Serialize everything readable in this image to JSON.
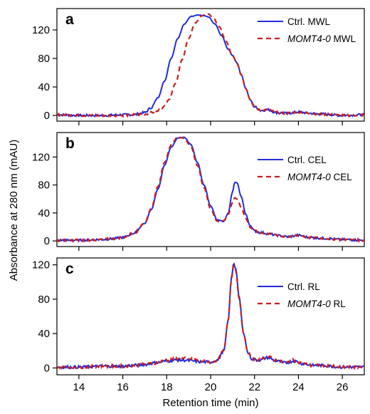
{
  "figure": {
    "ylabel": "Absorbance at 280 nm (mAU)",
    "xlabel": "Retention time (min)",
    "x_ticks": [
      "14",
      "16",
      "18",
      "20",
      "22",
      "24",
      "26"
    ]
  },
  "colors": {
    "ctrl": "#1f2de0",
    "momt": "#c81e1e"
  },
  "chart_data": [
    {
      "type": "line",
      "panel_label": "a",
      "xlim": [
        13,
        27
      ],
      "ylim": [
        -8,
        150
      ],
      "y_ticks": [
        0,
        40,
        80,
        120
      ],
      "y_tick_labels": [
        "0",
        "40",
        "80",
        "120"
      ],
      "x_ticks": [
        14,
        16,
        18,
        20,
        22,
        24,
        26
      ],
      "legend_placement": "top-right",
      "grid": false,
      "series": [
        {
          "name_plain": "Ctrl.",
          "name_italic": "",
          "name_suffix": " MWL",
          "style": "solid",
          "x": [
            13,
            14,
            15,
            16,
            16.5,
            17,
            17.3,
            17.6,
            17.9,
            18.2,
            18.5,
            18.8,
            19.1,
            19.4,
            19.7,
            19.9,
            20.2,
            20.5,
            20.8,
            21.0,
            21.2,
            21.4,
            21.6,
            21.8,
            22.0,
            22.3,
            22.6,
            23.0,
            23.5,
            24.0,
            24.5,
            25,
            26,
            27
          ],
          "y": [
            1,
            0,
            0,
            1,
            1,
            4,
            11,
            25,
            48,
            80,
            108,
            128,
            139,
            141,
            140,
            138,
            128,
            112,
            93,
            84,
            74,
            57,
            38,
            22,
            12,
            7,
            8,
            4,
            3,
            5,
            3,
            2,
            0,
            1
          ]
        },
        {
          "name_plain": "",
          "name_italic": "MOMT4-0",
          "name_suffix": " MWL",
          "style": "dashed",
          "x": [
            13,
            14,
            15,
            16,
            16.5,
            17,
            17.5,
            17.8,
            18.1,
            18.4,
            18.7,
            19.0,
            19.3,
            19.6,
            19.9,
            20.1,
            20.4,
            20.7,
            21.0,
            21.2,
            21.4,
            21.6,
            21.8,
            22.0,
            22.3,
            22.6,
            23.0,
            23.5,
            24.0,
            24.5,
            25,
            26,
            27
          ],
          "y": [
            1,
            0,
            0,
            0,
            1,
            2,
            5,
            10,
            22,
            45,
            78,
            108,
            130,
            140,
            142,
            138,
            124,
            104,
            84,
            73,
            57,
            38,
            22,
            12,
            7,
            8,
            4,
            3,
            5,
            3,
            2,
            0,
            1
          ]
        }
      ]
    },
    {
      "type": "line",
      "panel_label": "b",
      "xlim": [
        13,
        27
      ],
      "ylim": [
        -8,
        155
      ],
      "y_ticks": [
        0,
        40,
        80,
        120
      ],
      "y_tick_labels": [
        "0",
        "40",
        "80",
        "120"
      ],
      "x_ticks": [
        14,
        16,
        18,
        20,
        22,
        24,
        26
      ],
      "legend_placement": "top-right",
      "grid": false,
      "series": [
        {
          "name_plain": "Ctrl.",
          "name_italic": "",
          "name_suffix": " CEL",
          "style": "solid",
          "x": [
            13,
            14,
            15,
            15.5,
            16,
            16.5,
            17,
            17.3,
            17.6,
            17.9,
            18.2,
            18.5,
            18.8,
            19.1,
            19.4,
            19.7,
            20.0,
            20.3,
            20.6,
            20.8,
            21.0,
            21.1,
            21.2,
            21.4,
            21.6,
            21.8,
            22.0,
            22.3,
            22.7,
            23.0,
            23.5,
            24.0,
            24.5,
            25,
            26,
            27
          ],
          "y": [
            1,
            1,
            2,
            3,
            5,
            11,
            25,
            45,
            74,
            108,
            134,
            147,
            148,
            138,
            112,
            80,
            50,
            30,
            28,
            40,
            70,
            84,
            83,
            63,
            38,
            22,
            14,
            12,
            10,
            8,
            6,
            8,
            5,
            4,
            2,
            1
          ]
        },
        {
          "name_plain": "",
          "name_italic": "MOMT4-0",
          "name_suffix": " CEL",
          "style": "dashed",
          "x": [
            13,
            14,
            15,
            15.5,
            16,
            16.5,
            17,
            17.3,
            17.6,
            17.9,
            18.2,
            18.5,
            18.8,
            19.1,
            19.4,
            19.7,
            20.0,
            20.3,
            20.6,
            20.8,
            21.0,
            21.1,
            21.2,
            21.4,
            21.6,
            21.8,
            22.0,
            22.3,
            22.7,
            23.0,
            23.5,
            24.0,
            24.5,
            25,
            26,
            27
          ],
          "y": [
            1,
            1,
            2,
            3,
            5,
            11,
            26,
            47,
            78,
            112,
            137,
            149,
            147,
            135,
            108,
            76,
            46,
            28,
            29,
            38,
            55,
            62,
            60,
            48,
            32,
            20,
            14,
            12,
            10,
            8,
            6,
            8,
            5,
            4,
            2,
            1
          ]
        }
      ]
    },
    {
      "type": "line",
      "panel_label": "c",
      "xlim": [
        13,
        27
      ],
      "ylim": [
        -8,
        128
      ],
      "y_ticks": [
        0,
        40,
        80,
        120
      ],
      "y_tick_labels": [
        "0",
        "40",
        "80",
        "120"
      ],
      "x_ticks": [
        14,
        16,
        18,
        20,
        22,
        24,
        26
      ],
      "legend_placement": "top-right",
      "grid": false,
      "series": [
        {
          "name_plain": "Ctrl.",
          "name_italic": "",
          "name_suffix": " RL",
          "style": "solid",
          "x": [
            13,
            14,
            15,
            16,
            16.5,
            17,
            17.5,
            18.0,
            18.4,
            18.8,
            19.2,
            19.6,
            20.0,
            20.3,
            20.6,
            20.8,
            20.95,
            21.05,
            21.15,
            21.3,
            21.5,
            21.7,
            21.9,
            22.2,
            22.6,
            23.0,
            23.4,
            23.8,
            24.2,
            24.6,
            25,
            26,
            27
          ],
          "y": [
            1,
            1,
            2,
            2,
            3,
            4,
            6,
            8,
            9,
            9,
            8,
            7,
            7,
            9,
            20,
            55,
            105,
            122,
            115,
            82,
            40,
            18,
            10,
            9,
            12,
            8,
            6,
            8,
            5,
            3,
            3,
            1,
            1
          ]
        },
        {
          "name_plain": "",
          "name_italic": "MOMT4-0",
          "name_suffix": " RL",
          "style": "dashed",
          "x": [
            13,
            14,
            15,
            16,
            16.5,
            17,
            17.5,
            18.0,
            18.4,
            18.8,
            19.2,
            19.6,
            20.0,
            20.3,
            20.6,
            20.8,
            20.95,
            21.05,
            21.15,
            21.3,
            21.5,
            21.7,
            21.9,
            22.2,
            22.6,
            23.0,
            23.4,
            23.8,
            24.2,
            24.6,
            25,
            26,
            27
          ],
          "y": [
            1,
            1,
            2,
            2,
            3,
            4,
            6,
            9,
            11,
            11,
            10,
            8,
            7,
            9,
            20,
            55,
            104,
            120,
            113,
            80,
            40,
            18,
            11,
            10,
            13,
            9,
            6,
            9,
            5,
            3,
            3,
            1,
            1
          ]
        }
      ]
    }
  ]
}
